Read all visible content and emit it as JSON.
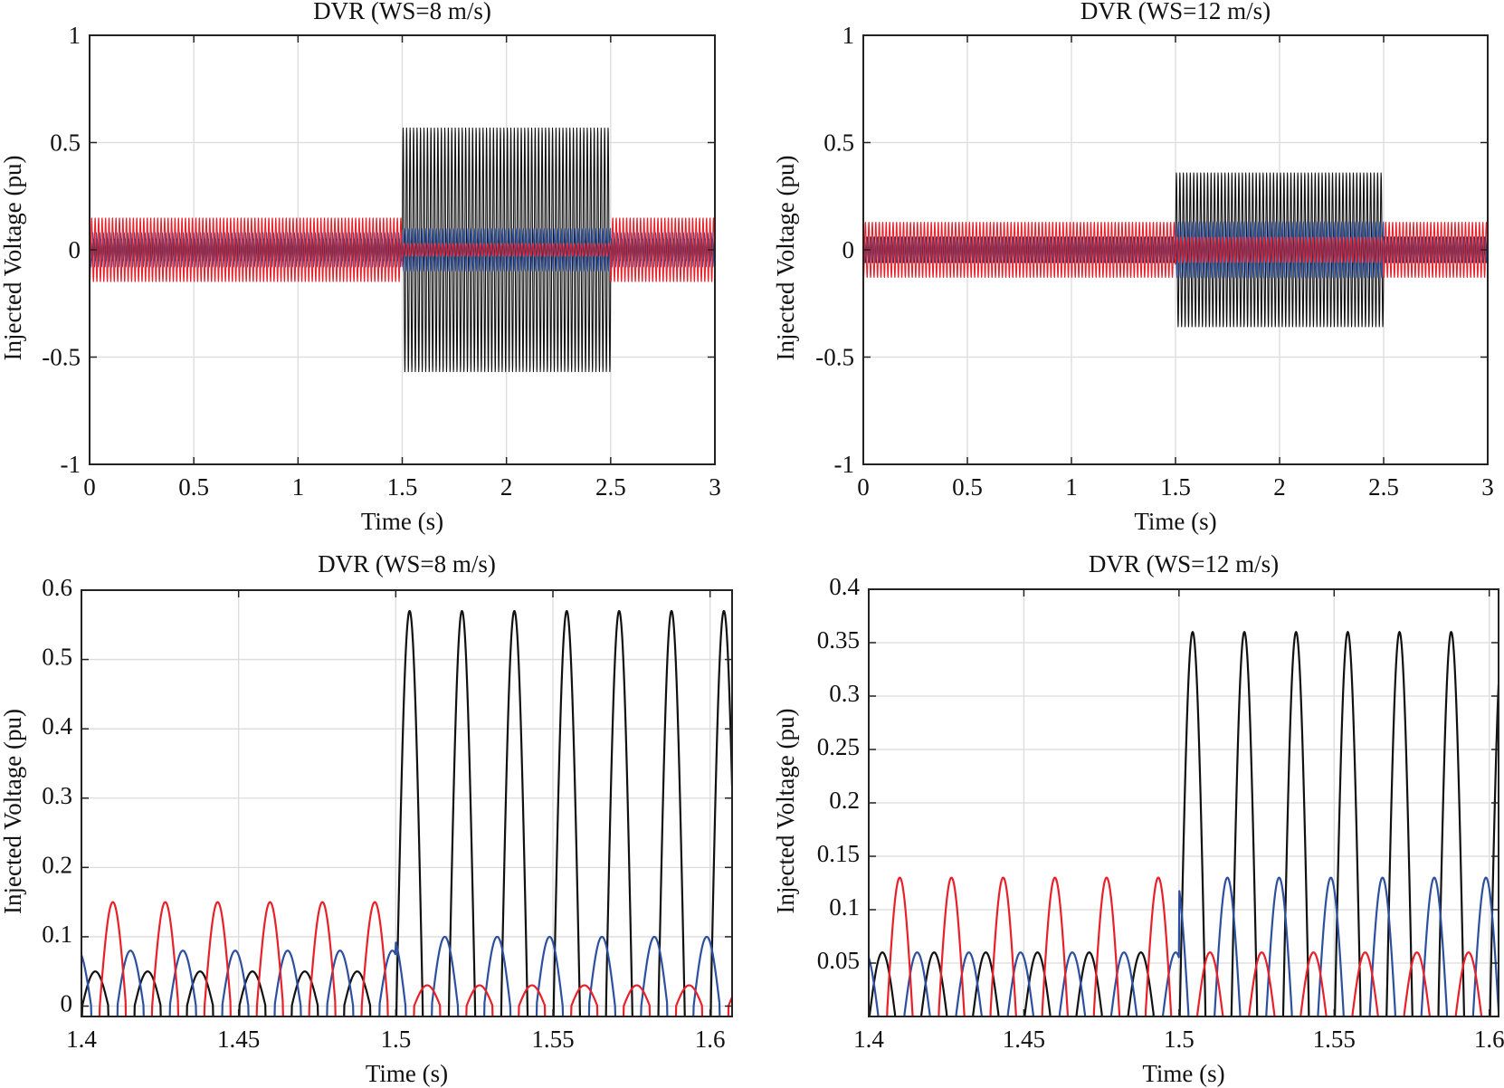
{
  "colors": {
    "phase_a": "#111111",
    "phase_b": "#2c4fa0",
    "phase_c": "#e8202a"
  },
  "chart_data": [
    {
      "type": "line",
      "title": "DVR (WS=8 m/s)",
      "xlabel": "Time (s)",
      "ylabel": "Injected Voltage (pu)",
      "xlim": [
        0,
        3
      ],
      "ylim": [
        -1,
        1
      ],
      "xticks": [
        "0",
        "0.5",
        "1",
        "1.5",
        "2",
        "2.5",
        "3"
      ],
      "xtick_values": [
        0,
        0.5,
        1,
        1.5,
        2,
        2.5,
        3
      ],
      "yticks": [
        "-1",
        "-0.5",
        "0",
        "0.5",
        "1"
      ],
      "ytick_values": [
        -1,
        -0.5,
        0,
        0.5,
        1
      ],
      "grid": true,
      "frequency_hz": 60,
      "event_interval_s": [
        1.5,
        2.5
      ],
      "series": [
        {
          "color": "#111111",
          "amplitude_outside": 0.05,
          "amplitude_during": 0.57,
          "phase_deg": 95
        },
        {
          "color": "#2c4fa0",
          "amplitude_outside": 0.08,
          "amplitude_during": 0.1,
          "phase_deg": 337
        },
        {
          "color": "#e8202a",
          "amplitude_outside": 0.15,
          "amplitude_during": 0.03,
          "phase_deg": 216
        }
      ]
    },
    {
      "type": "line",
      "title": "DVR (WS=12 m/s)",
      "xlabel": "Time (s)",
      "ylabel": "Injected Voltage (pu)",
      "xlim": [
        0,
        3
      ],
      "ylim": [
        -1,
        1
      ],
      "xticks": [
        "0",
        "0.5",
        "1",
        "1.5",
        "2",
        "2.5",
        "3"
      ],
      "xtick_values": [
        0,
        0.5,
        1,
        1.5,
        2,
        2.5,
        3
      ],
      "yticks": [
        "-1",
        "-0.5",
        "0",
        "0.5",
        "1"
      ],
      "ytick_values": [
        -1,
        -0.5,
        0,
        0.5,
        1
      ],
      "grid": true,
      "frequency_hz": 60,
      "event_interval_s": [
        1.5,
        2.5
      ],
      "series": [
        {
          "color": "#111111",
          "amplitude_outside": 0.06,
          "amplitude_during": 0.36,
          "phase_deg": 95
        },
        {
          "color": "#2c4fa0",
          "amplitude_outside": 0.06,
          "amplitude_during": 0.13,
          "phase_deg": 337
        },
        {
          "color": "#e8202a",
          "amplitude_outside": 0.13,
          "amplitude_during": 0.06,
          "phase_deg": 216
        }
      ]
    },
    {
      "type": "line",
      "title": "DVR (WS=8 m/s)",
      "xlabel": "Time (s)",
      "ylabel": "Injected Voltage (pu)",
      "xlim": [
        1.4,
        1.607
      ],
      "ylim": [
        -0.015,
        0.6
      ],
      "xticks": [
        "1.4",
        "1.45",
        "1.5",
        "1.55",
        "1.6"
      ],
      "xtick_values": [
        1.4,
        1.45,
        1.5,
        1.55,
        1.6
      ],
      "yticks": [
        "0",
        "0.1",
        "0.2",
        "0.3",
        "0.4",
        "0.5",
        "0.6"
      ],
      "ytick_values": [
        0,
        0.1,
        0.2,
        0.3,
        0.4,
        0.5,
        0.6
      ],
      "grid": true,
      "frequency_hz": 60,
      "event_interval_s": [
        1.5,
        2.5
      ],
      "clip_below_zero": true,
      "series": [
        {
          "color": "#111111",
          "amplitude_outside": 0.05,
          "amplitude_during": 0.57,
          "phase_deg": 95
        },
        {
          "color": "#2c4fa0",
          "amplitude_outside": 0.08,
          "amplitude_during": 0.1,
          "phase_deg": 337
        },
        {
          "color": "#e8202a",
          "amplitude_outside": 0.15,
          "amplitude_during": 0.03,
          "phase_deg": 216
        }
      ]
    },
    {
      "type": "line",
      "title": "DVR (WS=12 m/s)",
      "xlabel": "Time (s)",
      "ylabel": "Injected Voltage (pu)",
      "xlim": [
        1.4,
        1.603
      ],
      "ylim": [
        0,
        0.4
      ],
      "xticks": [
        "1.4",
        "1.45",
        "1.5",
        "1.55",
        "1.6"
      ],
      "xtick_values": [
        1.4,
        1.45,
        1.5,
        1.55,
        1.6
      ],
      "yticks": [
        "0.05",
        "0.1",
        "0.15",
        "0.2",
        "0.25",
        "0.3",
        "0.35",
        "0.4"
      ],
      "ytick_values": [
        0.05,
        0.1,
        0.15,
        0.2,
        0.25,
        0.3,
        0.35,
        0.4
      ],
      "grid": true,
      "frequency_hz": 60,
      "event_interval_s": [
        1.5,
        2.5
      ],
      "clip_below_zero": true,
      "series": [
        {
          "color": "#111111",
          "amplitude_outside": 0.06,
          "amplitude_during": 0.36,
          "phase_deg": 95
        },
        {
          "color": "#2c4fa0",
          "amplitude_outside": 0.06,
          "amplitude_during": 0.13,
          "phase_deg": 337
        },
        {
          "color": "#e8202a",
          "amplitude_outside": 0.13,
          "amplitude_during": 0.06,
          "phase_deg": 216
        }
      ]
    }
  ]
}
